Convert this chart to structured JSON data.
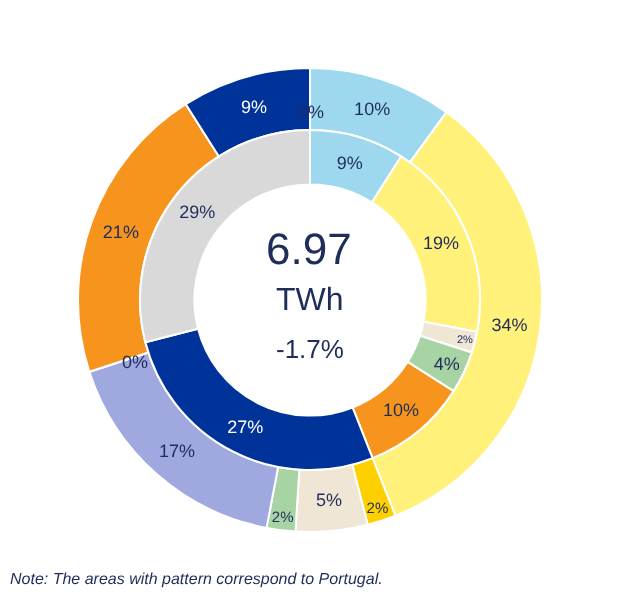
{
  "chart_data": {
    "type": "donut",
    "series": [
      {
        "values": [
          0,
          10,
          34,
          2,
          5,
          2,
          17,
          0,
          21,
          9
        ],
        "value_labels": [
          "0%",
          "10%",
          "34%",
          "2%",
          "5%",
          "2%",
          "17%",
          "0%",
          "21%",
          "9%"
        ],
        "colors": [
          "#555555",
          "#9dd8ef",
          "#fff17a",
          "#ffd000",
          "#efe6d6",
          "#a8d3a4",
          "#a0a8e0",
          "#555555",
          "#f7941d",
          "#003399"
        ]
      },
      {
        "values": [
          9,
          19,
          2,
          4,
          10,
          27,
          29
        ],
        "value_labels": [
          "9%",
          "19%",
          "2%",
          "4%",
          "10%",
          "27%",
          "29%"
        ],
        "colors": [
          "#9dd8ef",
          "#fff17a",
          "#efe6d6",
          "#a8d3a4",
          "#f7941d",
          "#003399",
          "#d9d9d9"
        ]
      }
    ],
    "annotations": [
      "6.97",
      "TWh",
      "-1.7%",
      "Note: The areas with pattern correspond to Portugal."
    ],
    "legend": false
  }
}
